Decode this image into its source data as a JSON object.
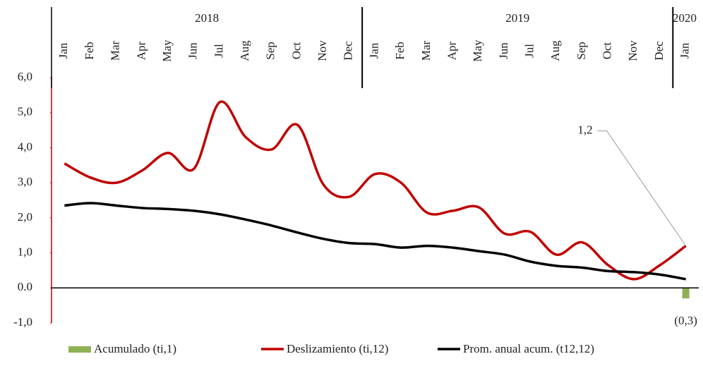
{
  "chart_data": {
    "type": "line",
    "categories": [
      "Jan",
      "Feb",
      "Mar",
      "Apr",
      "May",
      "Jun",
      "Jul",
      "Aug",
      "Sep",
      "Oct",
      "Nov",
      "Dec",
      "Jan",
      "Feb",
      "Mar",
      "Apr",
      "May",
      "Jun",
      "Jul",
      "Aug",
      "Sep",
      "Oct",
      "Nov",
      "Dec",
      "Jan"
    ],
    "years": [
      "2018",
      "2019",
      "2020"
    ],
    "series": [
      {
        "name": "Acumulado (ti,1)",
        "type": "bar",
        "color": "#8db255",
        "values": [
          null,
          null,
          null,
          null,
          null,
          null,
          null,
          null,
          null,
          null,
          null,
          null,
          null,
          null,
          null,
          null,
          null,
          null,
          null,
          null,
          null,
          null,
          null,
          null,
          -0.3
        ],
        "value_labels": [
          null,
          null,
          null,
          null,
          null,
          null,
          null,
          null,
          null,
          null,
          null,
          null,
          null,
          null,
          null,
          null,
          null,
          null,
          null,
          null,
          null,
          null,
          null,
          null,
          "(0,3)"
        ]
      },
      {
        "name": "Deslizamiento (ti,12)",
        "type": "line",
        "color": "#c00000",
        "values": [
          3.55,
          3.15,
          3.0,
          3.35,
          3.85,
          3.4,
          5.3,
          4.3,
          3.95,
          4.65,
          2.95,
          2.6,
          3.25,
          3.0,
          2.15,
          2.2,
          2.3,
          1.55,
          1.6,
          0.95,
          1.3,
          0.65,
          0.25,
          0.65,
          1.2
        ],
        "value_labels": [
          null,
          null,
          null,
          null,
          null,
          null,
          null,
          null,
          null,
          null,
          null,
          null,
          null,
          null,
          null,
          null,
          null,
          null,
          null,
          null,
          null,
          null,
          null,
          null,
          "1,2"
        ]
      },
      {
        "name": "Prom. anual acum. (t12,12)",
        "type": "line",
        "color": "#000000",
        "values": [
          2.35,
          2.42,
          2.35,
          2.28,
          2.25,
          2.2,
          2.1,
          1.95,
          1.78,
          1.58,
          1.4,
          1.28,
          1.25,
          1.15,
          1.2,
          1.15,
          1.05,
          0.95,
          0.75,
          0.63,
          0.58,
          0.48,
          0.45,
          0.38,
          0.25
        ]
      }
    ],
    "ylim": [
      -1,
      6
    ],
    "yticks": [
      {
        "value": -1,
        "label": "-1,0"
      },
      {
        "value": 0,
        "label": "0.0"
      },
      {
        "value": 1,
        "label": "1,0"
      },
      {
        "value": 2,
        "label": "2,0"
      },
      {
        "value": 3,
        "label": "3,0"
      },
      {
        "value": 4,
        "label": "4,0"
      },
      {
        "value": 5,
        "label": "5,0"
      },
      {
        "value": 6,
        "label": "6,0"
      }
    ],
    "grid": false
  }
}
